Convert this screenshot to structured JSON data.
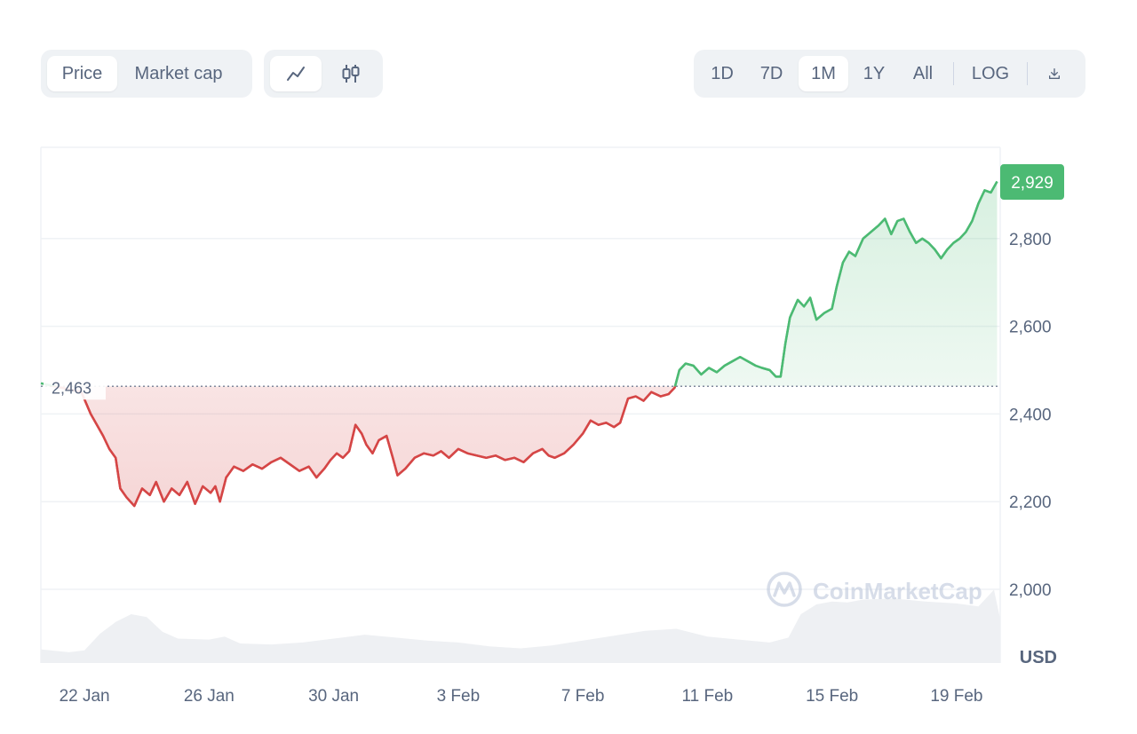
{
  "toolbar": {
    "metric_tabs": [
      {
        "label": "Price",
        "active": true
      },
      {
        "label": "Market cap",
        "active": false
      }
    ],
    "style_buttons": [
      {
        "icon": "line-chart-icon",
        "active": true
      },
      {
        "icon": "candlestick-icon",
        "active": false
      }
    ],
    "range_tabs": [
      {
        "label": "1D",
        "active": false
      },
      {
        "label": "7D",
        "active": false
      },
      {
        "label": "1M",
        "active": true
      },
      {
        "label": "1Y",
        "active": false
      },
      {
        "label": "All",
        "active": false
      }
    ],
    "log_label": "LOG",
    "download_icon": "download-icon"
  },
  "watermark": "CoinMarketCap",
  "chart_data": {
    "type": "line",
    "currency_label": "USD",
    "baseline_value": 2463,
    "baseline_label": "2,463",
    "current_value": 2929,
    "current_label": "2,929",
    "y_ticks": [
      {
        "value": 2800,
        "label": "2,800"
      },
      {
        "value": 2600,
        "label": "2,600"
      },
      {
        "value": 2400,
        "label": "2,400"
      },
      {
        "value": 2200,
        "label": "2,200"
      },
      {
        "value": 2000,
        "label": "2,000"
      }
    ],
    "x_ticks": [
      {
        "day": 0,
        "label": "22 Jan"
      },
      {
        "day": 4,
        "label": "26 Jan"
      },
      {
        "day": 8,
        "label": "30 Jan"
      },
      {
        "day": 12,
        "label": "3 Feb"
      },
      {
        "day": 16,
        "label": "7 Feb"
      },
      {
        "day": 20,
        "label": "11 Feb"
      },
      {
        "day": 24,
        "label": "15 Feb"
      },
      {
        "day": 28,
        "label": "19 Feb"
      }
    ],
    "ylim": [
      1830,
      3010
    ],
    "xlim": [
      -1.4,
      29.4
    ],
    "colors": {
      "up": "#4cba73",
      "down": "#d54646",
      "badge": "#4cba73",
      "volume": "#eef0f3"
    },
    "series": [
      {
        "points": [
          [
            -1.4,
            2470
          ],
          [
            -0.1,
            2450
          ],
          [
            0.2,
            2400
          ],
          [
            0.4,
            2375
          ],
          [
            0.6,
            2350
          ],
          [
            0.8,
            2320
          ],
          [
            1.0,
            2300
          ],
          [
            1.15,
            2230
          ],
          [
            1.35,
            2210
          ],
          [
            1.6,
            2190
          ],
          [
            1.85,
            2230
          ],
          [
            2.1,
            2215
          ],
          [
            2.3,
            2245
          ],
          [
            2.55,
            2200
          ],
          [
            2.8,
            2230
          ],
          [
            3.05,
            2215
          ],
          [
            3.3,
            2245
          ],
          [
            3.55,
            2195
          ],
          [
            3.8,
            2235
          ],
          [
            4.05,
            2220
          ],
          [
            4.2,
            2235
          ],
          [
            4.35,
            2200
          ],
          [
            4.55,
            2255
          ],
          [
            4.8,
            2280
          ],
          [
            5.1,
            2270
          ],
          [
            5.4,
            2285
          ],
          [
            5.7,
            2275
          ],
          [
            6.0,
            2290
          ],
          [
            6.3,
            2300
          ],
          [
            6.6,
            2285
          ],
          [
            6.9,
            2270
          ],
          [
            7.2,
            2280
          ],
          [
            7.45,
            2255
          ],
          [
            7.7,
            2275
          ],
          [
            7.9,
            2295
          ],
          [
            8.1,
            2310
          ],
          [
            8.3,
            2300
          ],
          [
            8.5,
            2315
          ],
          [
            8.7,
            2375
          ],
          [
            8.9,
            2355
          ],
          [
            9.05,
            2330
          ],
          [
            9.25,
            2310
          ],
          [
            9.45,
            2340
          ],
          [
            9.7,
            2350
          ],
          [
            9.9,
            2300
          ],
          [
            10.05,
            2260
          ],
          [
            10.3,
            2275
          ],
          [
            10.6,
            2300
          ],
          [
            10.9,
            2310
          ],
          [
            11.2,
            2305
          ],
          [
            11.45,
            2315
          ],
          [
            11.7,
            2300
          ],
          [
            12.0,
            2320
          ],
          [
            12.3,
            2310
          ],
          [
            12.6,
            2305
          ],
          [
            12.9,
            2300
          ],
          [
            13.2,
            2305
          ],
          [
            13.5,
            2295
          ],
          [
            13.8,
            2300
          ],
          [
            14.1,
            2290
          ],
          [
            14.4,
            2310
          ],
          [
            14.7,
            2320
          ],
          [
            14.9,
            2305
          ],
          [
            15.1,
            2300
          ],
          [
            15.4,
            2310
          ],
          [
            15.7,
            2330
          ],
          [
            16.0,
            2355
          ],
          [
            16.25,
            2385
          ],
          [
            16.5,
            2375
          ],
          [
            16.75,
            2380
          ],
          [
            17.0,
            2370
          ],
          [
            17.2,
            2380
          ],
          [
            17.45,
            2435
          ],
          [
            17.7,
            2440
          ],
          [
            17.95,
            2430
          ],
          [
            18.2,
            2450
          ],
          [
            18.5,
            2440
          ],
          [
            18.75,
            2445
          ],
          [
            18.95,
            2460
          ]
        ]
      },
      {
        "points": [
          [
            18.95,
            2460
          ],
          [
            19.1,
            2500
          ],
          [
            19.3,
            2515
          ],
          [
            19.55,
            2510
          ],
          [
            19.8,
            2490
          ],
          [
            20.05,
            2505
          ],
          [
            20.3,
            2495
          ],
          [
            20.55,
            2510
          ],
          [
            20.8,
            2520
          ],
          [
            21.05,
            2530
          ],
          [
            21.3,
            2520
          ],
          [
            21.55,
            2510
          ],
          [
            21.75,
            2505
          ],
          [
            22.0,
            2500
          ],
          [
            22.2,
            2485
          ],
          [
            22.35,
            2485
          ],
          [
            22.5,
            2560
          ],
          [
            22.65,
            2620
          ],
          [
            22.9,
            2660
          ],
          [
            23.1,
            2645
          ],
          [
            23.3,
            2665
          ],
          [
            23.5,
            2615
          ],
          [
            23.75,
            2630
          ],
          [
            24.0,
            2640
          ],
          [
            24.15,
            2690
          ],
          [
            24.35,
            2745
          ],
          [
            24.55,
            2770
          ],
          [
            24.75,
            2760
          ],
          [
            25.0,
            2800
          ],
          [
            25.25,
            2815
          ],
          [
            25.5,
            2830
          ],
          [
            25.7,
            2845
          ],
          [
            25.9,
            2810
          ],
          [
            26.1,
            2840
          ],
          [
            26.3,
            2845
          ],
          [
            26.5,
            2815
          ],
          [
            26.7,
            2790
          ],
          [
            26.9,
            2800
          ],
          [
            27.1,
            2790
          ],
          [
            27.3,
            2775
          ],
          [
            27.5,
            2755
          ],
          [
            27.7,
            2775
          ],
          [
            27.9,
            2790
          ],
          [
            28.1,
            2800
          ],
          [
            28.3,
            2815
          ],
          [
            28.5,
            2840
          ],
          [
            28.7,
            2880
          ],
          [
            28.9,
            2910
          ],
          [
            29.1,
            2905
          ],
          [
            29.3,
            2930
          ]
        ]
      }
    ],
    "volume": [
      [
        -1.4,
        0.14
      ],
      [
        -0.5,
        0.11
      ],
      [
        0.0,
        0.13
      ],
      [
        0.5,
        0.3
      ],
      [
        1.0,
        0.42
      ],
      [
        1.5,
        0.5
      ],
      [
        2.0,
        0.47
      ],
      [
        2.5,
        0.32
      ],
      [
        3.0,
        0.25
      ],
      [
        4.0,
        0.24
      ],
      [
        4.5,
        0.27
      ],
      [
        5.0,
        0.2
      ],
      [
        6.0,
        0.19
      ],
      [
        7.0,
        0.21
      ],
      [
        8.0,
        0.25
      ],
      [
        9.0,
        0.29
      ],
      [
        10.0,
        0.26
      ],
      [
        11.0,
        0.23
      ],
      [
        12.0,
        0.21
      ],
      [
        13.0,
        0.17
      ],
      [
        14.0,
        0.15
      ],
      [
        15.0,
        0.18
      ],
      [
        16.0,
        0.23
      ],
      [
        17.0,
        0.28
      ],
      [
        18.0,
        0.33
      ],
      [
        19.0,
        0.35
      ],
      [
        20.0,
        0.27
      ],
      [
        21.0,
        0.24
      ],
      [
        22.0,
        0.21
      ],
      [
        22.6,
        0.26
      ],
      [
        23.0,
        0.5
      ],
      [
        23.5,
        0.6
      ],
      [
        24.0,
        0.63
      ],
      [
        24.5,
        0.62
      ],
      [
        25.0,
        0.65
      ],
      [
        26.0,
        0.66
      ],
      [
        27.0,
        0.63
      ],
      [
        28.0,
        0.61
      ],
      [
        28.7,
        0.58
      ],
      [
        29.2,
        0.75
      ],
      [
        29.4,
        0.45
      ]
    ]
  }
}
